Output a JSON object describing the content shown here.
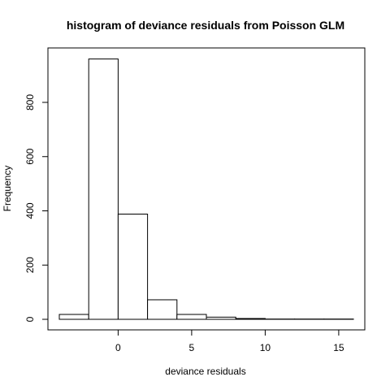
{
  "chart_data": {
    "type": "bar",
    "title": "histogram of deviance residuals from Poisson GLM",
    "xlabel": "deviance residuals",
    "ylabel": "Frequency",
    "bin_edges": [
      -4,
      -2,
      0,
      2,
      4,
      6,
      8,
      10,
      12,
      14,
      16
    ],
    "values": [
      18,
      960,
      388,
      72,
      18,
      8,
      3,
      1,
      1,
      1
    ],
    "xlim": [
      -4.4,
      16.4
    ],
    "ylim": [
      0,
      1000
    ],
    "x_ticks": [
      0,
      5,
      10,
      15
    ],
    "x_tick_labels": [
      "0",
      "5",
      "10",
      "15"
    ],
    "y_ticks": [
      0,
      200,
      400,
      600,
      800
    ],
    "y_tick_labels": [
      "0",
      "200",
      "400",
      "600",
      "800"
    ],
    "grid": false,
    "legend": "none"
  }
}
